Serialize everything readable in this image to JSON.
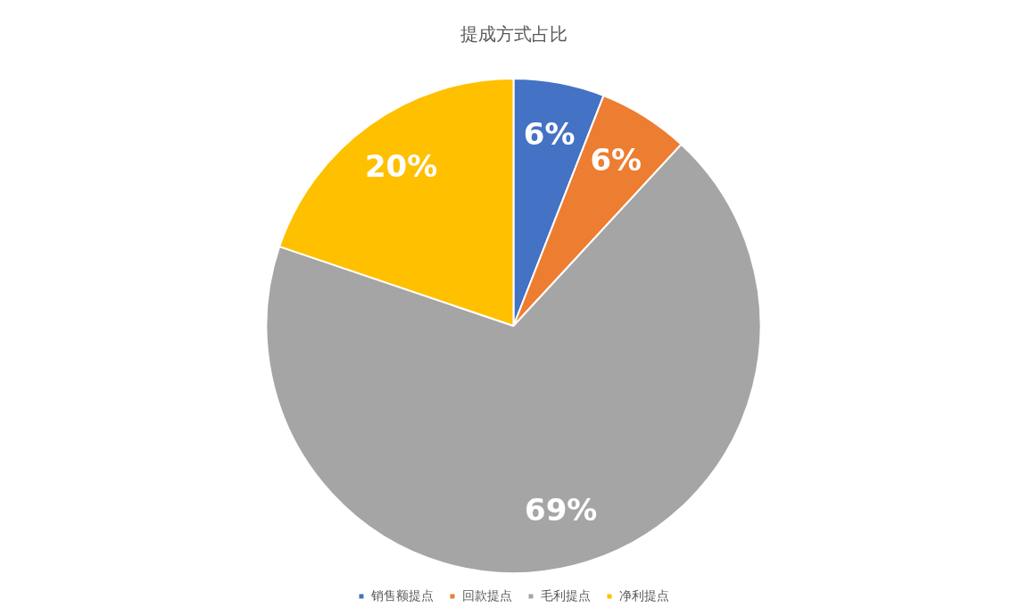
{
  "chart_data": {
    "type": "pie",
    "title": "提成方式占比",
    "categories": [
      "销售额提点",
      "回款提点",
      "毛利提点",
      "净利提点"
    ],
    "values": [
      6,
      6,
      69,
      20
    ],
    "colors": [
      "#4472c4",
      "#ed7d31",
      "#a5a5a5",
      "#ffc000"
    ],
    "value_labels": [
      "6%",
      "6%",
      "69%",
      "20%"
    ],
    "legend": "bottom"
  }
}
